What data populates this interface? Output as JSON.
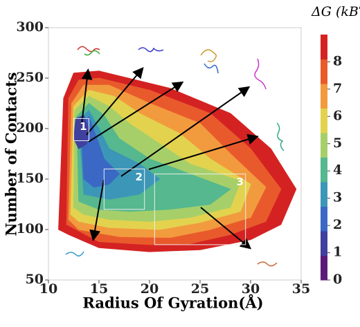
{
  "chart_data": {
    "type": "contour",
    "xlabel": "Radius Of Gyration(Å)",
    "ylabel": "Number of Contacts",
    "xlim": [
      10,
      35
    ],
    "xticks": [
      10,
      15,
      20,
      25,
      30,
      35
    ],
    "ylim": [
      50,
      300
    ],
    "yticks": [
      50,
      100,
      150,
      200,
      250,
      300
    ],
    "colorbar": {
      "label": "ΔG (kBT)",
      "lim": [
        0,
        9
      ],
      "ticks": [
        0,
        1,
        2,
        3,
        4,
        5,
        6,
        7,
        8
      ],
      "colors": [
        "#5b1a78",
        "#40409e",
        "#3a68c4",
        "#3c96b8",
        "#55b88e",
        "#a6cf6a",
        "#e3d24e",
        "#f29a3e",
        "#e85a2c",
        "#d42222"
      ]
    },
    "levels": [
      {
        "value": 9,
        "x": [
          11,
          11.5,
          12.5,
          15,
          22,
          28,
          32,
          34.5,
          33,
          30,
          25,
          20,
          15,
          12
        ],
        "y": [
          100,
          230,
          255,
          257,
          240,
          215,
          180,
          140,
          105,
          90,
          80,
          78,
          82,
          95
        ]
      },
      {
        "value": 8,
        "x": [
          11.8,
          12,
          13,
          15,
          20,
          26,
          30,
          33,
          31.5,
          28,
          24,
          20,
          15
        ],
        "y": [
          105,
          230,
          248,
          250,
          238,
          215,
          180,
          140,
          108,
          95,
          86,
          85,
          88
        ]
      },
      {
        "value": 7,
        "x": [
          12,
          12.3,
          13.5,
          16,
          20,
          25,
          28,
          31.5,
          30,
          26,
          22,
          17,
          13
        ],
        "y": [
          110,
          225,
          243,
          243,
          225,
          205,
          175,
          142,
          112,
          100,
          92,
          93,
          100
        ]
      },
      {
        "value": 6,
        "x": [
          12.2,
          12.5,
          14,
          16.5,
          19,
          23,
          26,
          30,
          29,
          25,
          21,
          16,
          13
        ],
        "y": [
          115,
          222,
          238,
          232,
          215,
          195,
          170,
          145,
          118,
          107,
          100,
          102,
          108
        ]
      },
      {
        "value": 5,
        "x": [
          12.5,
          12.6,
          14,
          16,
          18,
          21,
          24,
          29,
          28,
          24,
          20,
          16,
          13.5
        ],
        "y": [
          122,
          218,
          232,
          222,
          205,
          185,
          165,
          148,
          122,
          112,
          108,
          110,
          115
        ]
      },
      {
        "value": 4,
        "x": [
          13,
          12.8,
          14,
          15.5,
          17,
          20,
          24,
          28,
          26,
          22,
          18,
          15
        ],
        "y": [
          128,
          212,
          225,
          213,
          190,
          170,
          155,
          140,
          125,
          120,
          118,
          120
        ]
      },
      {
        "value": 3,
        "x": [
          13.5,
          13,
          14,
          15,
          16,
          19,
          21,
          19,
          16
        ],
        "y": [
          135,
          208,
          218,
          200,
          180,
          165,
          150,
          135,
          130
        ]
      },
      {
        "value": 2,
        "x": [
          13.5,
          13.2,
          14,
          14.8,
          15.5,
          17,
          16,
          14.5
        ],
        "y": [
          150,
          205,
          212,
          190,
          170,
          155,
          145,
          142
        ]
      },
      {
        "value": 1,
        "x": [
          12.5,
          12.7,
          13.5,
          14,
          13.8,
          13
        ],
        "y": [
          190,
          210,
          213,
          200,
          185,
          180
        ]
      }
    ],
    "regions": [
      {
        "label": "1",
        "x": [
          12.5,
          14
        ],
        "y": [
          188,
          210
        ]
      },
      {
        "label": "2",
        "x": [
          15.5,
          19.5
        ],
        "y": [
          120,
          160
        ]
      },
      {
        "label": "3",
        "x": [
          20.5,
          29.5
        ],
        "y": [
          85,
          155
        ]
      }
    ]
  }
}
